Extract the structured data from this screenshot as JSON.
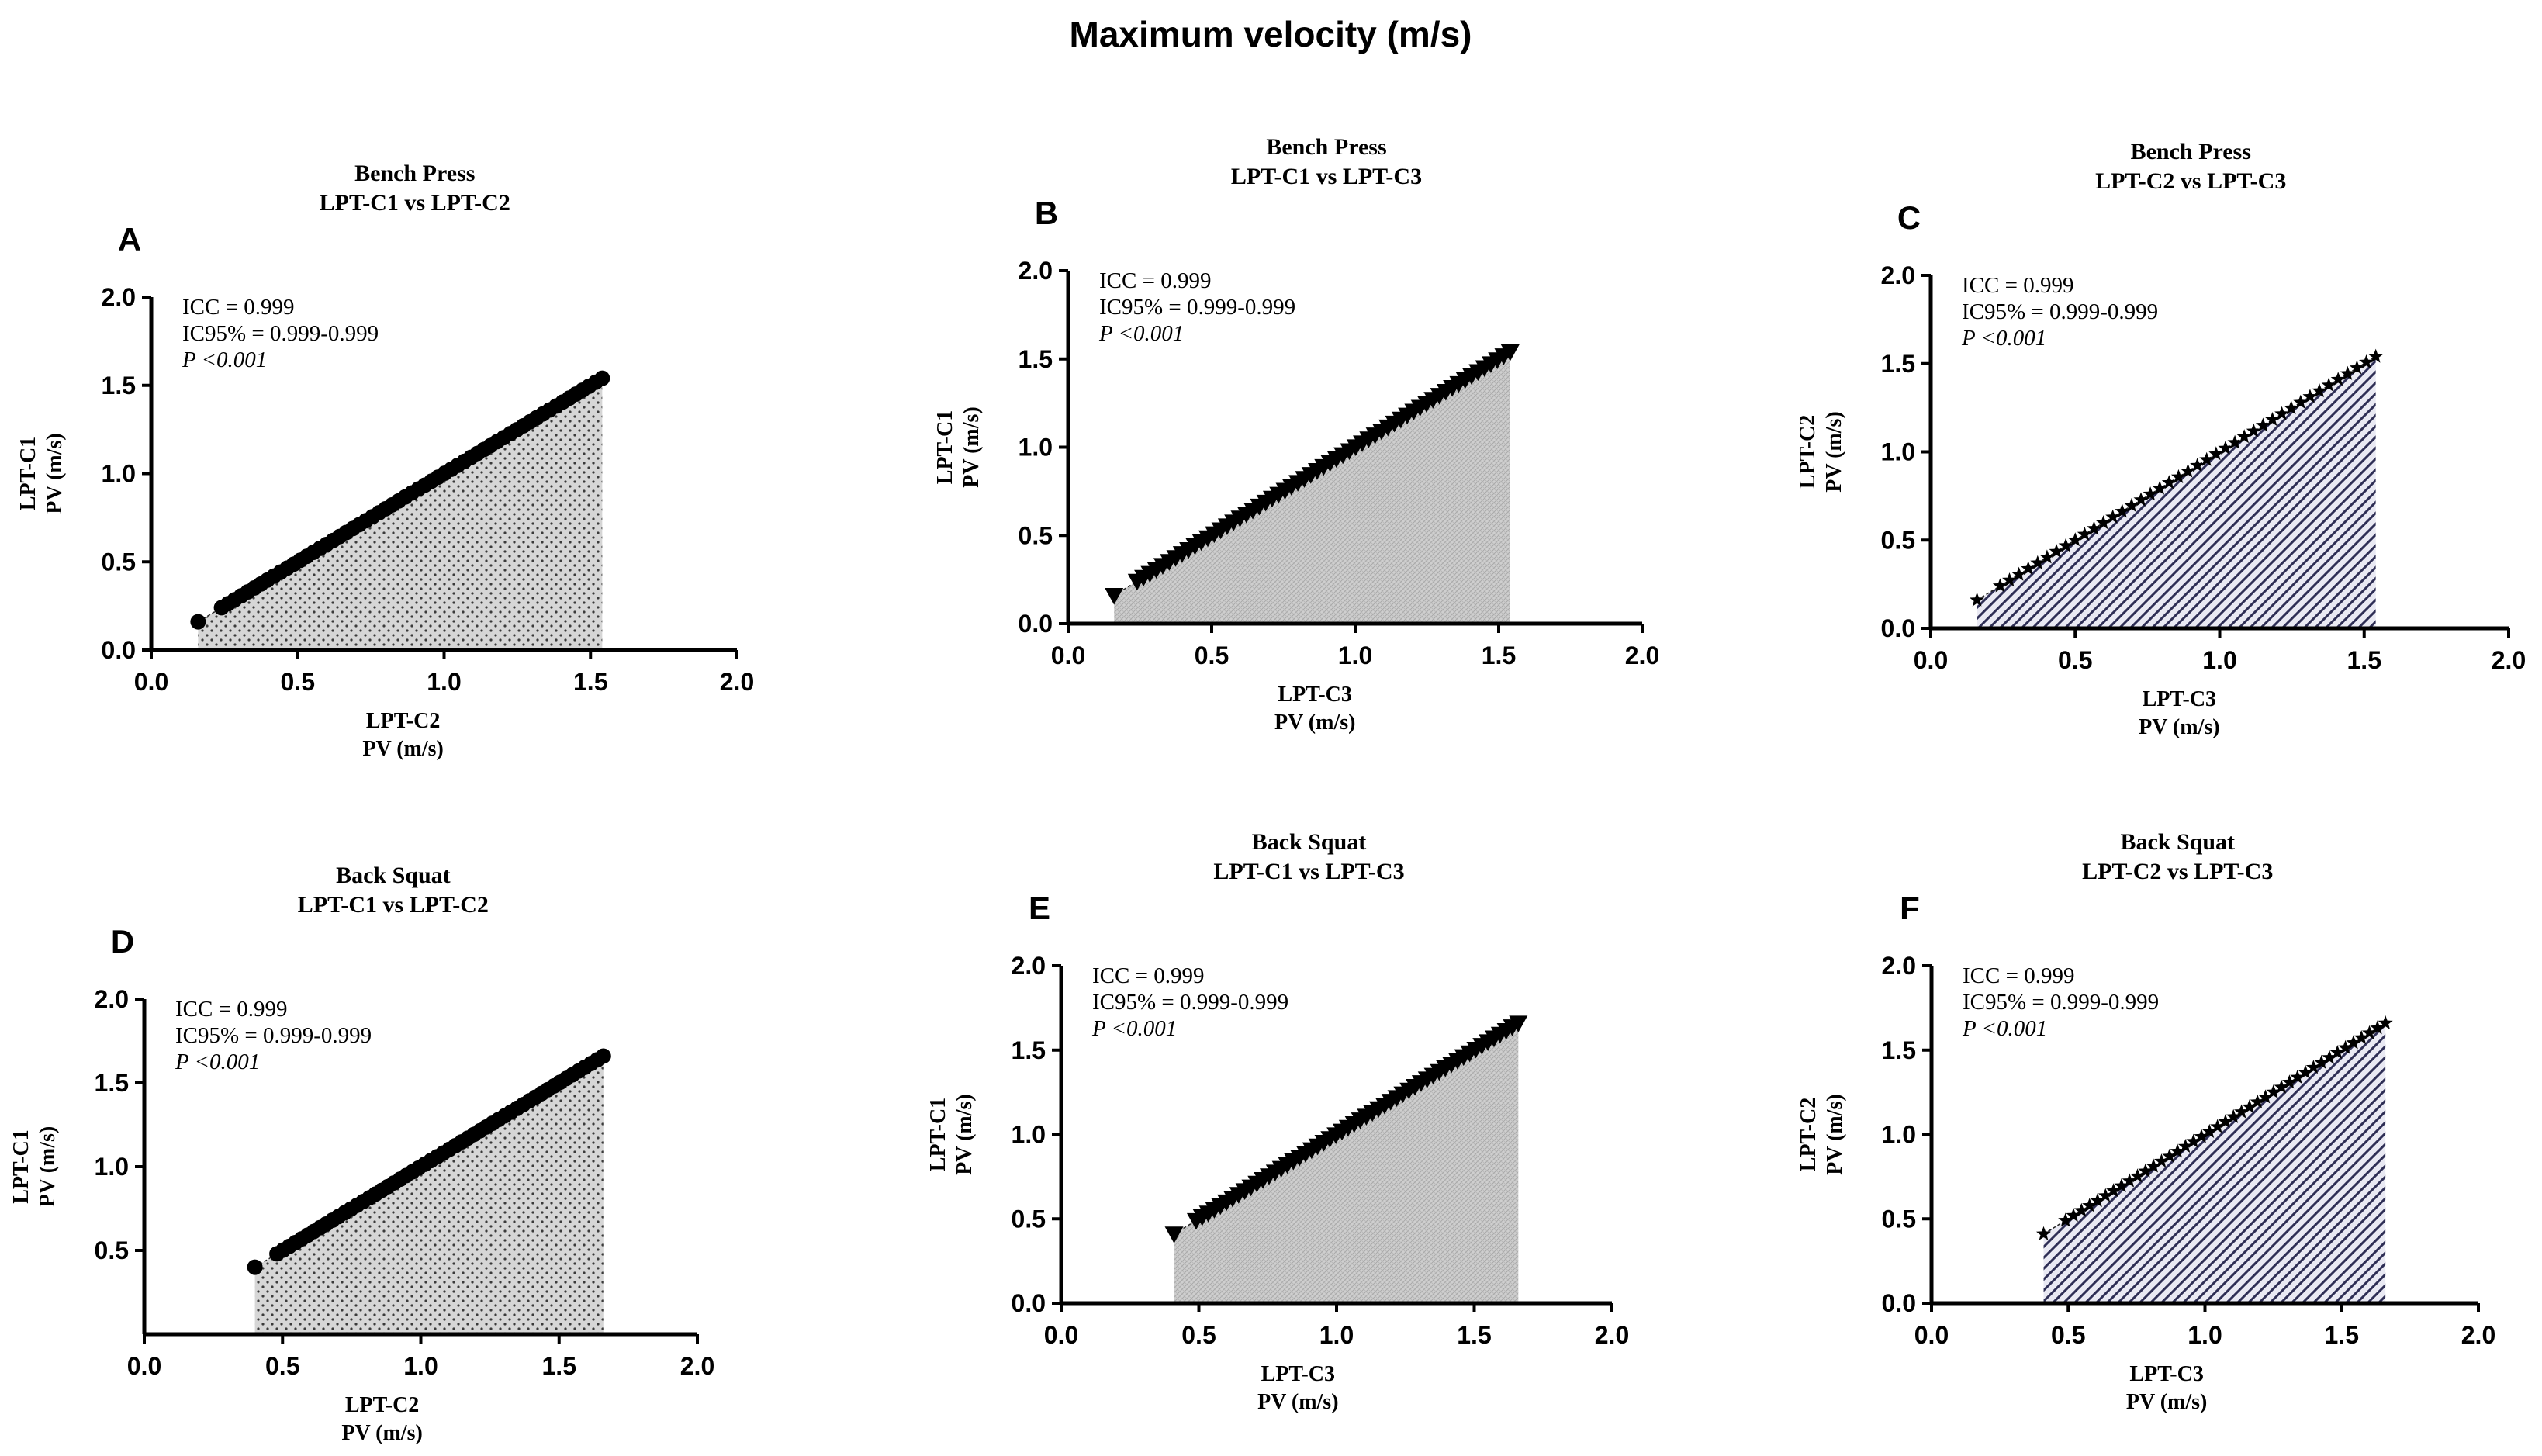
{
  "figure": {
    "title": "Maximum velocity (m/s)"
  },
  "chart_data": [
    {
      "id": "A",
      "type": "scatter",
      "letter": "A",
      "title": "Bench Press",
      "subtitle": "LPT-C1 vs LPT-C2",
      "xlabel": "LPT-C2",
      "xlabel2": "PV (m/s)",
      "ylabel": "LPT-C1",
      "ylabel2": "PV (m/s)",
      "xlim": [
        0,
        2
      ],
      "ylim": [
        0,
        2
      ],
      "xticks": [
        "0.0",
        "0.5",
        "1.0",
        "1.5",
        "2.0"
      ],
      "yticks": [
        "0.0",
        "0.5",
        "1.0",
        "1.5",
        "2.0"
      ],
      "stats": {
        "icc": "ICC = 0.999",
        "ci": "IC95% = 0.999-0.999",
        "p": "P <0.001"
      },
      "marker": "circle",
      "fill_pattern": "dots",
      "x_range": [
        0.16,
        1.54
      ],
      "n_points": 60,
      "first_gap": 0.08
    },
    {
      "id": "B",
      "type": "scatter",
      "letter": "B",
      "title": "Bench Press",
      "subtitle": "LPT-C1 vs LPT-C3",
      "xlabel": "LPT-C3",
      "xlabel2": "PV (m/s)",
      "ylabel": "LPT-C1",
      "ylabel2": "PV (m/s)",
      "xlim": [
        0,
        2
      ],
      "ylim": [
        0,
        2
      ],
      "xticks": [
        "0.0",
        "0.5",
        "1.0",
        "1.5",
        "2.0"
      ],
      "yticks": [
        "0.0",
        "0.5",
        "1.0",
        "1.5",
        "2.0"
      ],
      "stats": {
        "icc": "ICC = 0.999",
        "ci": "IC95% = 0.999-0.999",
        "p": "P <0.001"
      },
      "marker": "triangle-down",
      "fill_pattern": "crosshatch",
      "x_range": [
        0.16,
        1.54
      ],
      "n_points": 60,
      "first_gap": 0.08
    },
    {
      "id": "C",
      "type": "scatter",
      "letter": "C",
      "title": "Bench Press",
      "subtitle": "LPT-C2 vs LPT-C3",
      "xlabel": "LPT-C3",
      "xlabel2": "PV (m/s)",
      "ylabel": "LPT-C2",
      "ylabel2": "PV (m/s)",
      "xlim": [
        0,
        2
      ],
      "ylim": [
        0,
        2
      ],
      "xticks": [
        "0.0",
        "0.5",
        "1.0",
        "1.5",
        "2.0"
      ],
      "yticks": [
        "0.0",
        "0.5",
        "1.0",
        "1.5",
        "2.0"
      ],
      "stats": {
        "icc": "ICC = 0.999",
        "ci": "IC95% = 0.999-0.999",
        "p": "P <0.001"
      },
      "marker": "star",
      "fill_pattern": "diagonal",
      "x_range": [
        0.16,
        1.54
      ],
      "n_points": 42,
      "first_gap": 0.08
    },
    {
      "id": "D",
      "type": "scatter",
      "letter": "D",
      "title": "Back Squat",
      "subtitle": "LPT-C1 vs LPT-C2",
      "xlabel": "LPT-C2",
      "xlabel2": "PV (m/s)",
      "ylabel": "LPT-C1",
      "ylabel2": "PV (m/s)",
      "xlim": [
        0,
        2
      ],
      "ylim": [
        0,
        2
      ],
      "xticks": [
        "0.0",
        "0.5",
        "1.0",
        "1.5",
        "2.0"
      ],
      "yticks": [
        "0.5",
        "1.0",
        "1.5",
        "2.0"
      ],
      "stats": {
        "icc": "ICC = 0.999",
        "ci": "IC95% = 0.999-0.999",
        "p": "P <0.001"
      },
      "marker": "circle",
      "fill_pattern": "dots",
      "x_range": [
        0.4,
        1.66
      ],
      "n_points": 55,
      "first_gap": 0.08
    },
    {
      "id": "E",
      "type": "scatter",
      "letter": "E",
      "title": "Back Squat",
      "subtitle": "LPT-C1 vs LPT-C3",
      "xlabel": "LPT-C3",
      "xlabel2": "PV (m/s)",
      "ylabel": "LPT-C1",
      "ylabel2": "PV (m/s)",
      "xlim": [
        0,
        2
      ],
      "ylim": [
        0,
        2
      ],
      "xticks": [
        "0.0",
        "0.5",
        "1.0",
        "1.5",
        "2.0"
      ],
      "yticks": [
        "0.0",
        "0.5",
        "1.0",
        "1.5",
        "2.0"
      ],
      "stats": {
        "icc": "ICC = 0.999",
        "ci": "IC95% = 0.999-0.999",
        "p": "P <0.001"
      },
      "marker": "triangle-down",
      "fill_pattern": "crosshatch",
      "x_range": [
        0.41,
        1.66
      ],
      "n_points": 55,
      "first_gap": 0.08
    },
    {
      "id": "F",
      "type": "scatter",
      "letter": "F",
      "title": "Back Squat",
      "subtitle": "LPT-C2 vs LPT-C3",
      "xlabel": "LPT-C3",
      "xlabel2": "PV (m/s)",
      "ylabel": "LPT-C2",
      "ylabel2": "PV (m/s)",
      "xlim": [
        0,
        2
      ],
      "ylim": [
        0,
        2
      ],
      "xticks": [
        "0.0",
        "0.5",
        "1.0",
        "1.5",
        "2.0"
      ],
      "yticks": [
        "0.0",
        "0.5",
        "1.0",
        "1.5",
        "2.0"
      ],
      "stats": {
        "icc": "ICC = 0.999",
        "ci": "IC95% = 0.999-0.999",
        "p": "P <0.001"
      },
      "marker": "star",
      "fill_pattern": "diagonal",
      "x_range": [
        0.41,
        1.66
      ],
      "n_points": 42,
      "first_gap": 0.08
    }
  ]
}
